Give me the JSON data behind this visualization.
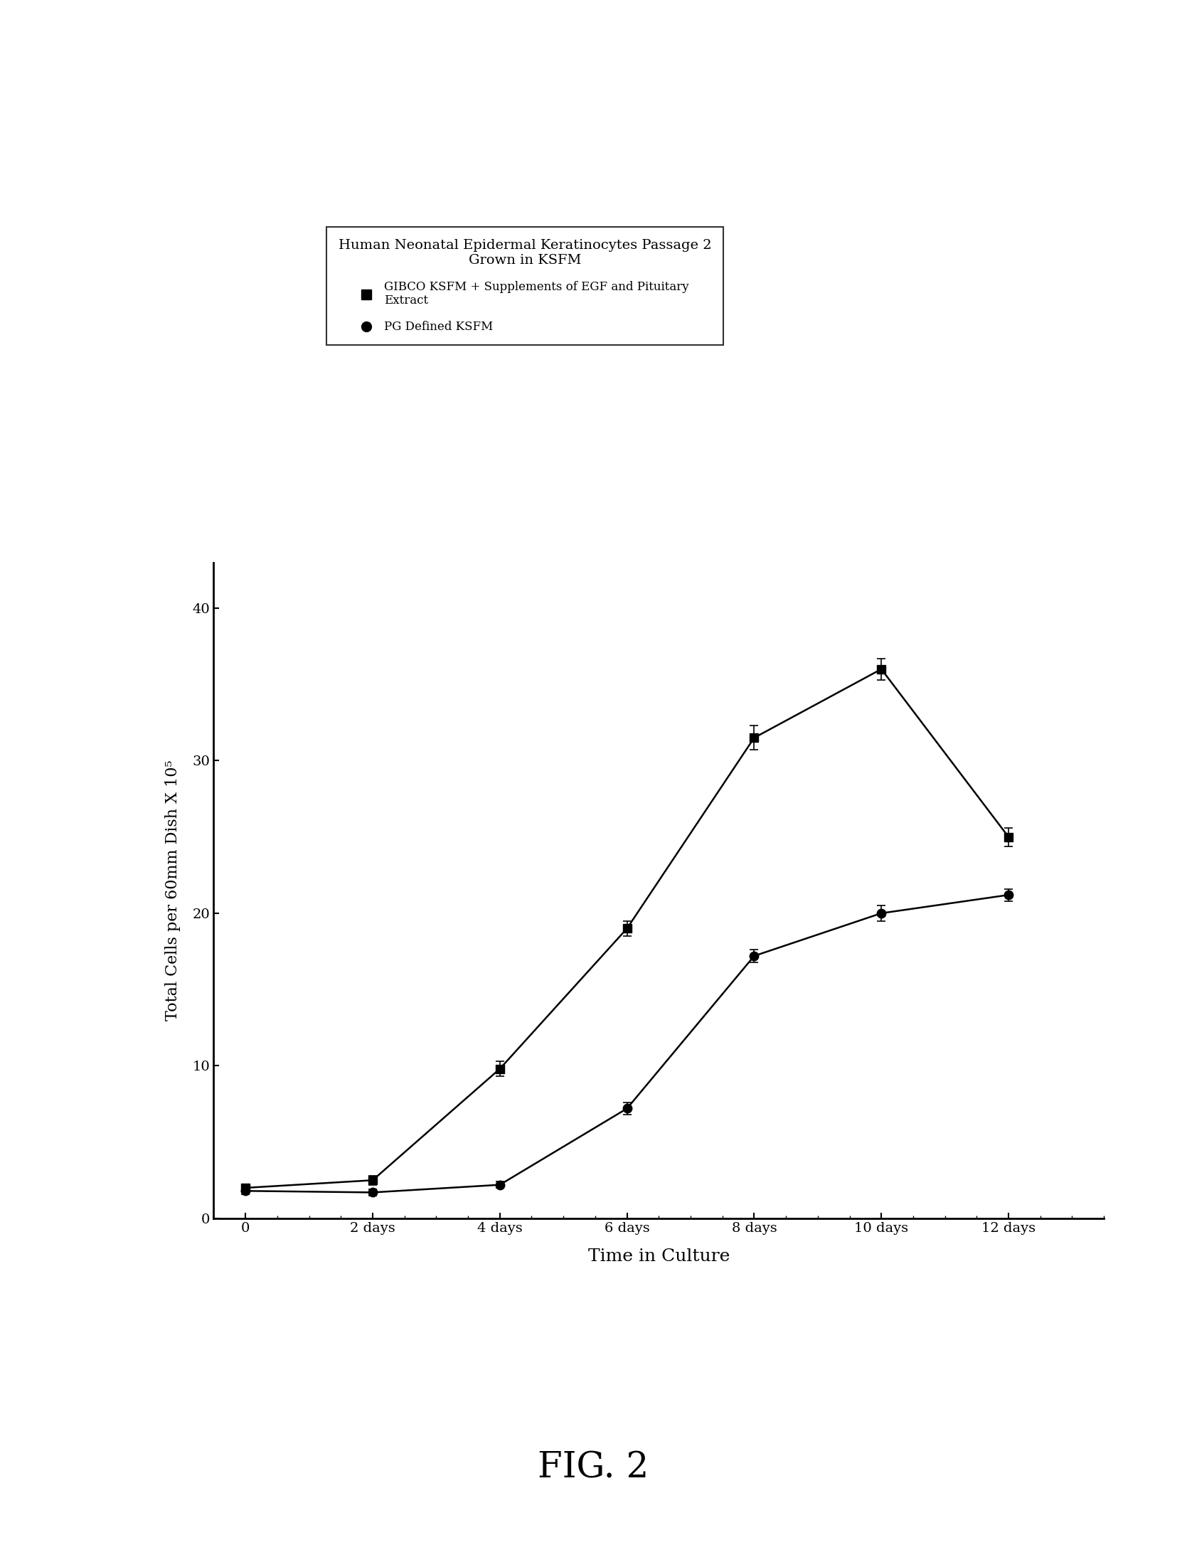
{
  "title": "Human Neonatal Epidermal Keratinocytes Passage 2\nGrown in KSFM",
  "xlabel": "Time in Culture",
  "ylabel": "Total Cells per 60mm Dish X 10⁵",
  "fig_label": "FIG. 2",
  "x_ticks": [
    0,
    2,
    4,
    6,
    8,
    10,
    12
  ],
  "x_tick_labels": [
    "0",
    "2 days",
    "4 days",
    "6 days",
    "8 days",
    "10 days",
    "12 days"
  ],
  "ylim": [
    0,
    43
  ],
  "y_ticks": [
    0,
    10,
    20,
    30,
    40
  ],
  "series1_label": "GIBCO KSFM + Supplements of EGF and Pituitary\nExtract",
  "series2_label": "PG Defined KSFM",
  "series1_x": [
    0,
    2,
    4,
    6,
    8,
    10,
    12
  ],
  "series1_y": [
    2.0,
    2.5,
    9.8,
    19.0,
    31.5,
    36.0,
    25.0
  ],
  "series1_yerr": [
    0.2,
    0.3,
    0.5,
    0.5,
    0.8,
    0.7,
    0.6
  ],
  "series2_x": [
    0,
    2,
    4,
    6,
    8,
    10,
    12
  ],
  "series2_y": [
    1.8,
    1.7,
    2.2,
    7.2,
    17.2,
    20.0,
    21.2
  ],
  "series2_yerr": [
    0.2,
    0.2,
    0.2,
    0.4,
    0.4,
    0.5,
    0.4
  ],
  "line_color": "#000000",
  "marker1": "s",
  "marker2": "o",
  "marker_size": 9,
  "marker_color": "#000000",
  "background_color": "#ffffff",
  "legend_title_fontsize": 14,
  "legend_label_fontsize": 12,
  "axis_label_fontsize": 16,
  "tick_label_fontsize": 14,
  "fig_label_fontsize": 36,
  "xlabel_fontsize": 18
}
